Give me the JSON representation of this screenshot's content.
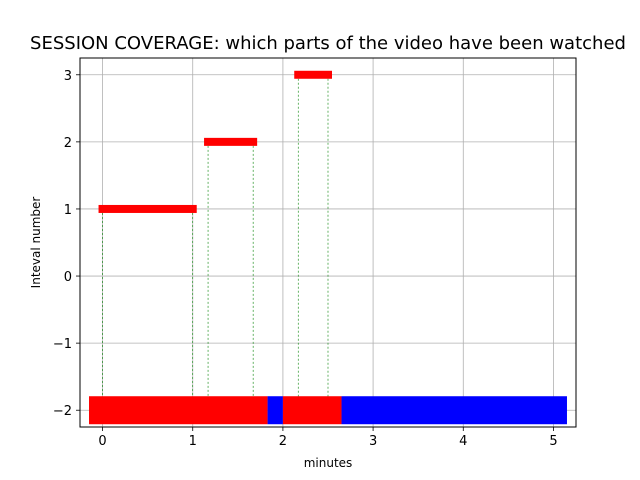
{
  "chart_data": {
    "type": "bar",
    "title": "SESSION COVERAGE: which parts of the video have been watched",
    "xlabel": "minutes",
    "ylabel": "Inteval number",
    "xlim": [
      -0.25,
      5.25
    ],
    "ylim": [
      -2.25,
      3.25
    ],
    "xticks": [
      0,
      1,
      2,
      3,
      4,
      5
    ],
    "yticks": [
      3,
      2,
      1,
      0,
      -1,
      -2
    ],
    "xtick_labels": [
      "0",
      "1",
      "2",
      "3",
      "4",
      "5"
    ],
    "ytick_labels": [
      "3",
      "2",
      "1",
      "0",
      "−1",
      "−2"
    ],
    "grid": true,
    "intervals": [
      {
        "y": 1,
        "start": 0.0,
        "end": 1.0
      },
      {
        "y": 2,
        "start": 1.17,
        "end": 1.67
      },
      {
        "y": 3,
        "start": 2.17,
        "end": 2.5
      }
    ],
    "coverage_row": {
      "y": -2,
      "segments": [
        {
          "start": -0.15,
          "end": 1.83,
          "color": "#ff0000"
        },
        {
          "start": 1.83,
          "end": 2.0,
          "color": "#0000ff"
        },
        {
          "start": 2.0,
          "end": 2.65,
          "color": "#ff0000"
        },
        {
          "start": 2.65,
          "end": 5.15,
          "color": "#0000ff"
        }
      ]
    },
    "colors": {
      "watched": "#ff0000",
      "unwatched": "#0000ff",
      "guide": "#008000",
      "grid": "#b0b0b0"
    }
  }
}
